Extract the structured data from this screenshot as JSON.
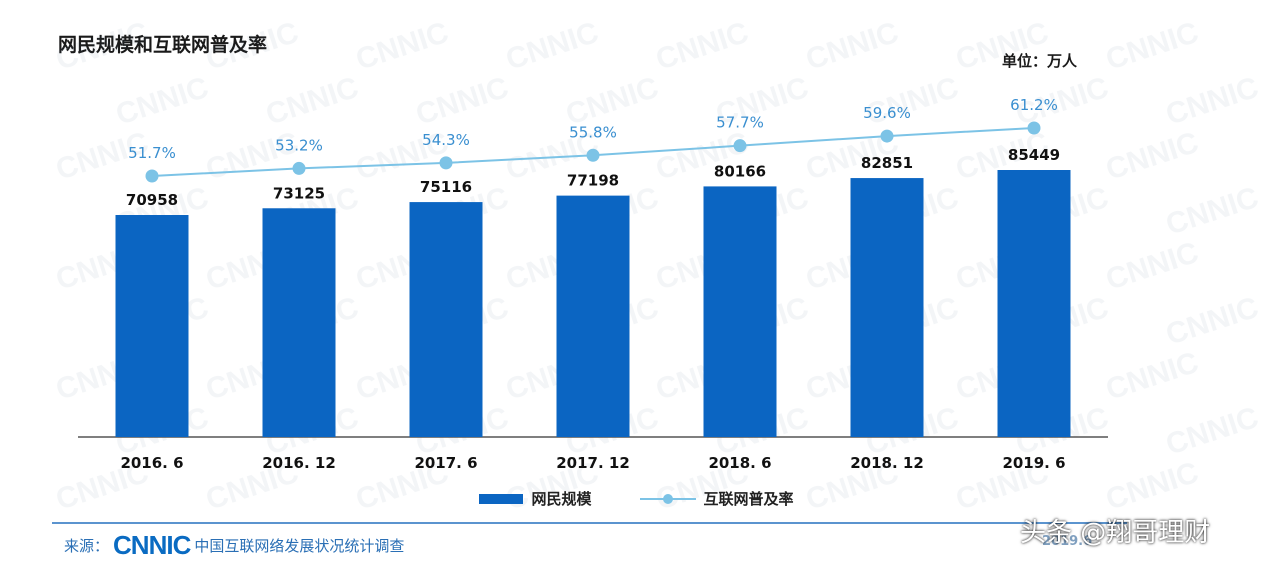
{
  "chart": {
    "title": "网民规模和互联网普及率",
    "unit": "单位：万人"
  },
  "legend": {
    "bar_label": "网民规模",
    "line_label": "互联网普及率"
  },
  "source": {
    "prefix": "来源：",
    "logo": "CNNIC",
    "org": "中国互联网络发展状况统计调查"
  },
  "year_tag": "2019.6",
  "watermark_author": "头条 @翔哥理财",
  "colors": {
    "bar": "#0b65c2",
    "line": "#7cc3e6",
    "line_label": "#3a8fd0",
    "bar_label": "#111111"
  },
  "chart_data": {
    "type": "bar",
    "categories": [
      "2016. 6",
      "2016. 12",
      "2017. 6",
      "2017. 12",
      "2018. 6",
      "2018. 12",
      "2019. 6"
    ],
    "series": [
      {
        "name": "网民规模",
        "type": "bar",
        "values": [
          70958,
          73125,
          75116,
          77198,
          80166,
          82851,
          85449
        ]
      },
      {
        "name": "互联网普及率",
        "type": "line",
        "values": [
          51.7,
          53.2,
          54.3,
          55.8,
          57.7,
          59.6,
          61.2
        ],
        "labels": [
          "51.7%",
          "53.2%",
          "54.3%",
          "55.8%",
          "57.7%",
          "59.6%",
          "61.2%"
        ]
      }
    ],
    "title": "网民规模和互联网普及率",
    "xlabel": "",
    "ylabel": "",
    "grid": false,
    "legend_position": "bottom"
  }
}
